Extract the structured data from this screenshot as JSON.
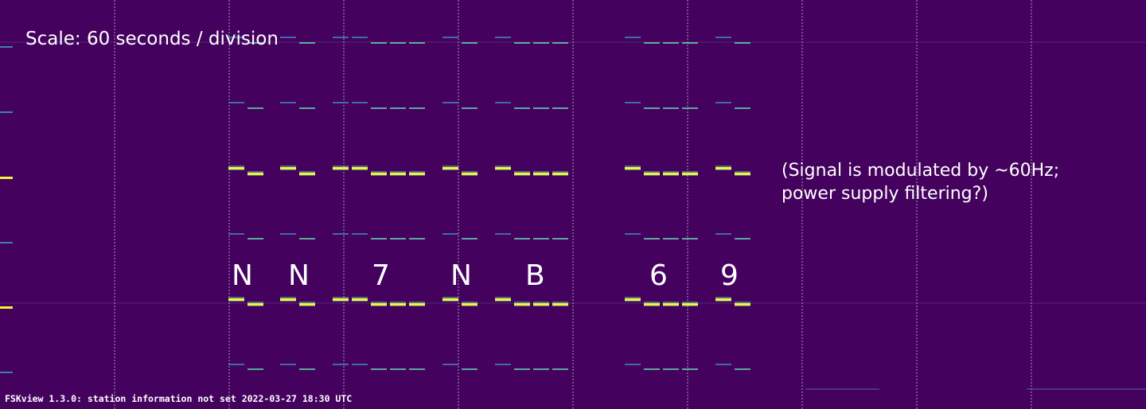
{
  "annotations": {
    "scale": "Scale: 60 seconds / division",
    "note_line1": "(Signal is modulated by ~60Hz;",
    "note_line2": "power supply filtering?)"
  },
  "decoded_letters": [
    "N",
    "N",
    "7",
    "N",
    "B",
    "6",
    "9"
  ],
  "status_bar": "FSKview 1.3.0: station information not set 2022-03-27 18:30 UTC",
  "colors": {
    "background": "#44025e",
    "grid": "#d0c8e0",
    "tone_strong": "#f6f33a",
    "tone_mid": "#5fc7a8",
    "tone_weak": "#3f7fb0",
    "text": "#ffffff"
  }
}
